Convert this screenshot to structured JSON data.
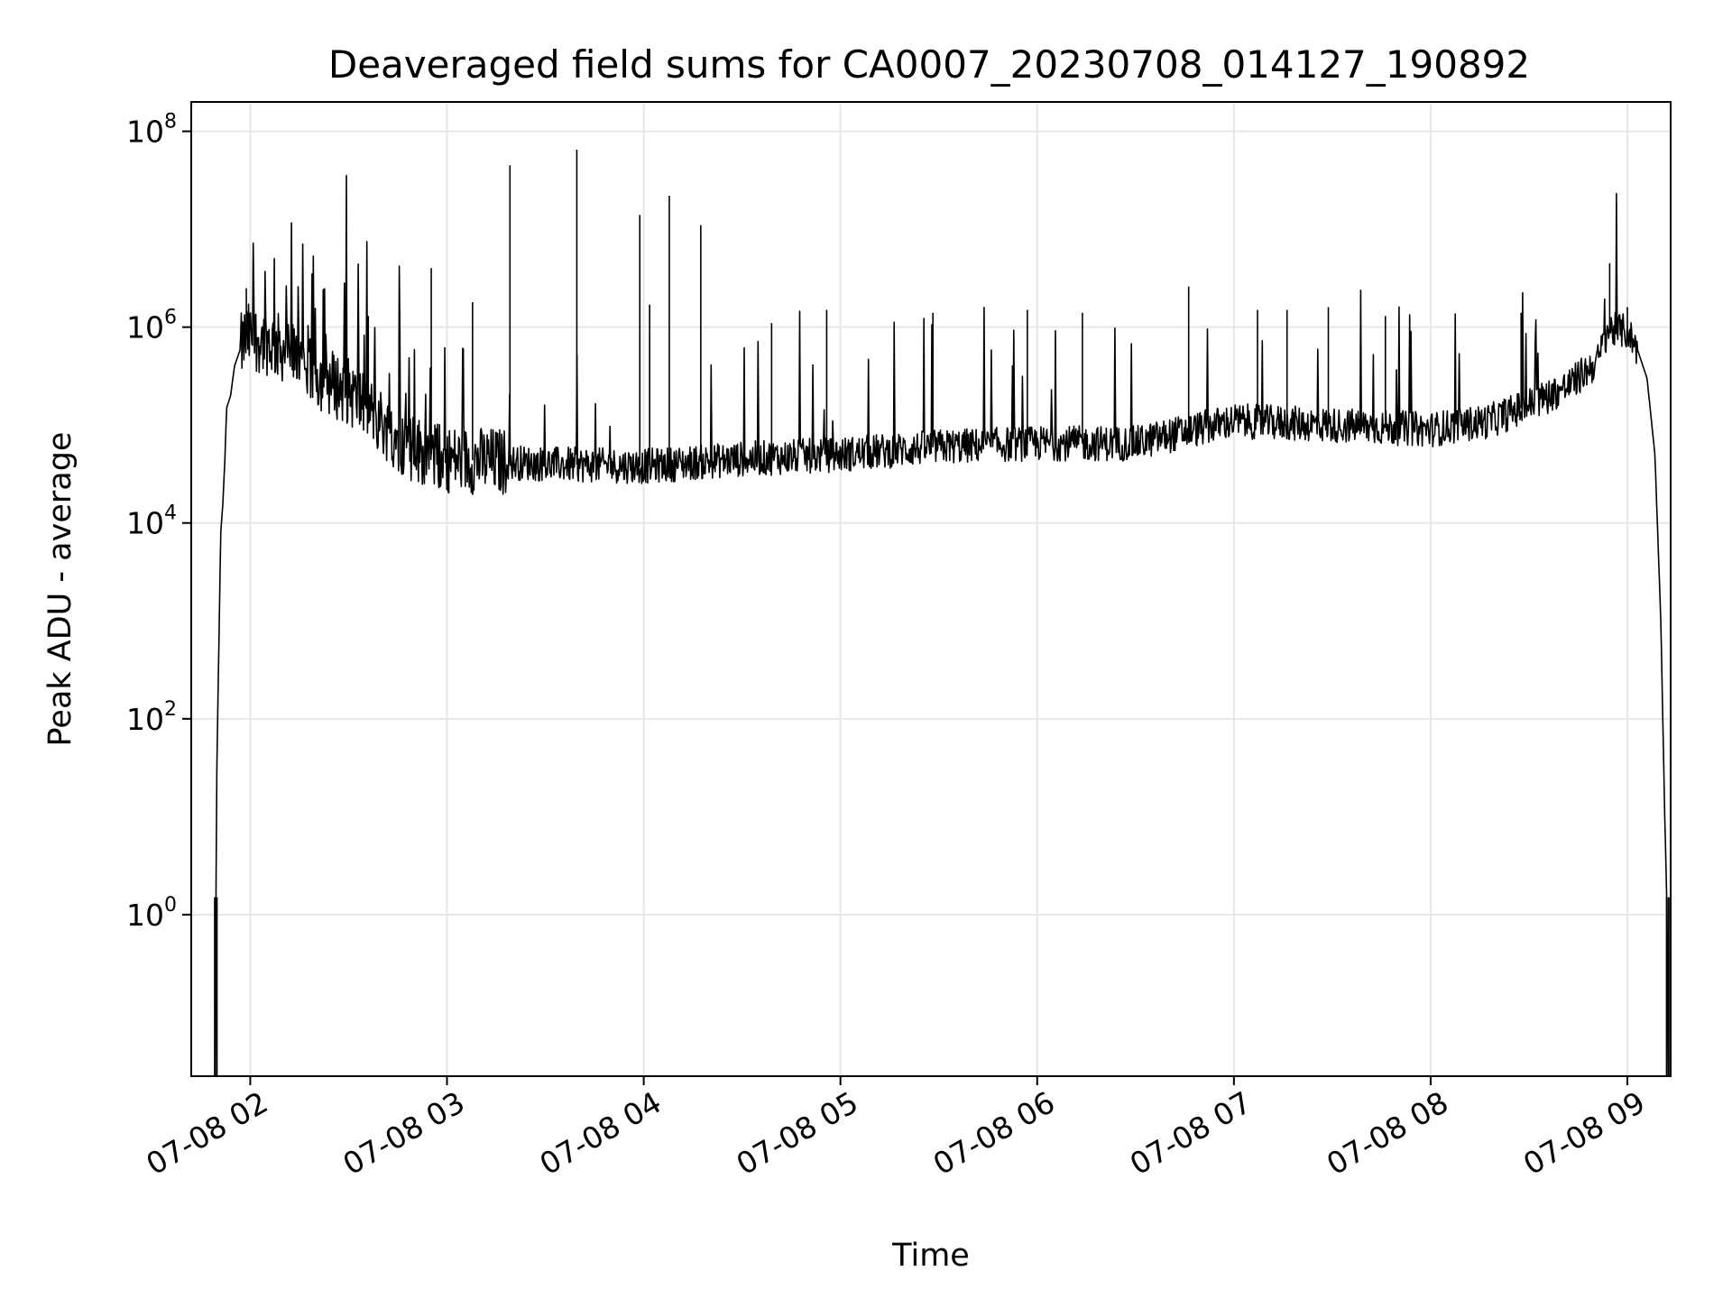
{
  "chart_data": {
    "type": "line",
    "title": "Deaveraged field sums for CA0007_20230708_014127_190892",
    "xlabel": "Time",
    "ylabel": "Peak ADU - average",
    "x_tick_labels": [
      "07-08 02",
      "07-08 03",
      "07-08 04",
      "07-08 05",
      "07-08 06",
      "07-08 07",
      "07-08 08",
      "07-08 09"
    ],
    "x_tick_hours": [
      2,
      3,
      4,
      5,
      6,
      7,
      8,
      9
    ],
    "y_tick_values": [
      1,
      100,
      10000,
      1000000,
      100000000
    ],
    "y_tick_bases": [
      "10",
      "10",
      "10",
      "10",
      "10"
    ],
    "y_tick_exponents": [
      "0",
      "2",
      "4",
      "6",
      "8"
    ],
    "x_range_hours": [
      1.7,
      9.22
    ],
    "y_range_log10": [
      -1.65,
      8.3
    ],
    "y_scale": "log",
    "grid": true,
    "line_color": "#000000",
    "grid_color": "#e6e6e6",
    "series": [
      {
        "x_hours": [
          1.82,
          1.83,
          1.84,
          1.85,
          1.86,
          1.87,
          1.88,
          1.9,
          1.92,
          1.95,
          1.98,
          2.0,
          2.05,
          2.1,
          2.2,
          2.3,
          2.4,
          2.5,
          2.6,
          2.7,
          2.8,
          3.0,
          3.5,
          4.0,
          4.5,
          5.0,
          5.5,
          6.0,
          6.5,
          6.8,
          7.0,
          7.5,
          8.0,
          8.3,
          8.5,
          8.7,
          8.85,
          8.9,
          9.0,
          9.05,
          9.1,
          9.14,
          9.17,
          9.19,
          9.2,
          9.21
        ],
        "y": [
          0.02,
          30,
          500,
          8000,
          15000,
          40000,
          150000,
          200000,
          400000,
          600000,
          800000,
          800000,
          750000,
          700000,
          550000,
          350000,
          280000,
          220000,
          150000,
          90000,
          60000,
          45000,
          40000,
          38000,
          45000,
          50000,
          60000,
          65000,
          65000,
          90000,
          110000,
          100000,
          90000,
          110000,
          160000,
          250000,
          450000,
          950000,
          900000,
          600000,
          300000,
          50000,
          1000,
          10,
          1.5,
          0.02
        ],
        "spikes": [
          {
            "x_hours": 1.98,
            "y": 2500000
          },
          {
            "x_hours": 2.33,
            "y": 1100000
          },
          {
            "x_hours": 2.6,
            "y": 1300000
          },
          {
            "x_hours": 2.92,
            "y": 4000000
          },
          {
            "x_hours": 3.13,
            "y": 1800000
          },
          {
            "x_hours": 3.32,
            "y": 45000000
          },
          {
            "x_hours": 3.66,
            "y": 65000000
          },
          {
            "x_hours": 3.98,
            "y": 14000000
          },
          {
            "x_hours": 4.03,
            "y": 1700000
          },
          {
            "x_hours": 4.13,
            "y": 22000000
          },
          {
            "x_hours": 4.29,
            "y": 11000000
          },
          {
            "x_hours": 4.65,
            "y": 1100000
          },
          {
            "x_hours": 4.93,
            "y": 1500000
          },
          {
            "x_hours": 5.47,
            "y": 1400000
          },
          {
            "x_hours": 5.95,
            "y": 1500000
          },
          {
            "x_hours": 6.23,
            "y": 1400000
          },
          {
            "x_hours": 6.77,
            "y": 2600000
          },
          {
            "x_hours": 7.12,
            "y": 1500000
          },
          {
            "x_hours": 7.27,
            "y": 1500000
          },
          {
            "x_hours": 7.48,
            "y": 1600000
          },
          {
            "x_hours": 7.77,
            "y": 1300000
          },
          {
            "x_hours": 8.46,
            "y": 1400000
          },
          {
            "x_hours": 8.91,
            "y": 4500000
          },
          {
            "x_hours": 9.0,
            "y": 1600000
          }
        ],
        "zero_dips_x_hours": [
          1.82,
          1.83,
          9.2,
          9.21
        ]
      }
    ]
  }
}
